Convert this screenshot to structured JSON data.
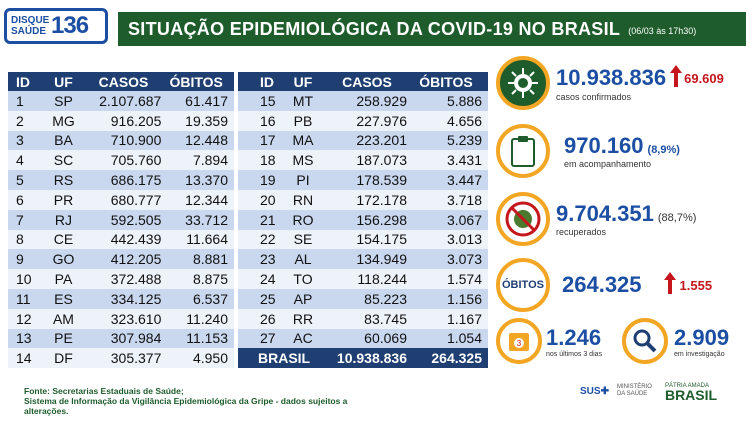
{
  "logo": {
    "line1": "DISQUE",
    "line2": "SAÚDE",
    "number": "136"
  },
  "header": {
    "title": "SITUAÇÃO EPIDEMIOLÓGICA DA COVID-19 NO BRASIL",
    "date": "(06/03 às 17h30)"
  },
  "table_headers": {
    "id": "ID",
    "uf": "UF",
    "casos": "CASOS",
    "obitos": "ÓBITOS"
  },
  "rows_left": [
    [
      "1",
      "SP",
      "2.107.687",
      "61.417"
    ],
    [
      "2",
      "MG",
      "916.205",
      "19.359"
    ],
    [
      "3",
      "BA",
      "710.900",
      "12.448"
    ],
    [
      "4",
      "SC",
      "705.760",
      "7.894"
    ],
    [
      "5",
      "RS",
      "686.175",
      "13.370"
    ],
    [
      "6",
      "PR",
      "680.777",
      "12.344"
    ],
    [
      "7",
      "RJ",
      "592.505",
      "33.712"
    ],
    [
      "8",
      "CE",
      "442.439",
      "11.664"
    ],
    [
      "9",
      "GO",
      "412.205",
      "8.881"
    ],
    [
      "10",
      "PA",
      "372.488",
      "8.875"
    ],
    [
      "11",
      "ES",
      "334.125",
      "6.537"
    ],
    [
      "12",
      "AM",
      "323.610",
      "11.240"
    ],
    [
      "13",
      "PE",
      "307.984",
      "11.153"
    ],
    [
      "14",
      "DF",
      "305.377",
      "4.950"
    ]
  ],
  "rows_right": [
    [
      "15",
      "MT",
      "258.929",
      "5.886"
    ],
    [
      "16",
      "PB",
      "227.976",
      "4.656"
    ],
    [
      "17",
      "MA",
      "223.201",
      "5.239"
    ],
    [
      "18",
      "MS",
      "187.073",
      "3.431"
    ],
    [
      "19",
      "PI",
      "178.539",
      "3.447"
    ],
    [
      "20",
      "RN",
      "172.178",
      "3.718"
    ],
    [
      "21",
      "RO",
      "156.298",
      "3.067"
    ],
    [
      "22",
      "SE",
      "154.175",
      "3.013"
    ],
    [
      "23",
      "AL",
      "134.949",
      "3.073"
    ],
    [
      "24",
      "TO",
      "118.244",
      "1.574"
    ],
    [
      "25",
      "AP",
      "85.223",
      "1.156"
    ],
    [
      "26",
      "RR",
      "83.745",
      "1.167"
    ],
    [
      "27",
      "AC",
      "60.069",
      "1.054"
    ]
  ],
  "total": {
    "label": "BRASIL",
    "casos": "10.938.836",
    "obitos": "264.325"
  },
  "stats": {
    "confirmed": {
      "value": "10.938.836",
      "label": "casos confirmados",
      "delta": "69.609"
    },
    "followup": {
      "value": "970.160",
      "pct": "(8,9%)",
      "label": "em acompanhamento"
    },
    "recovered": {
      "value": "9.704.351",
      "pct": "(88,7%)",
      "label": "recuperados"
    },
    "deaths": {
      "badge": "ÓBITOS",
      "value": "264.325",
      "delta": "1.555"
    },
    "last3": {
      "value": "1.246",
      "label": "nos últimos 3 dias",
      "icon_text": "3"
    },
    "investigation": {
      "value": "2.909",
      "label": "em investigação"
    }
  },
  "footer": {
    "line1": "Fonte: Secretarias Estaduais de Saúde;",
    "line2": "Sistema de Informação da Vigilância Epidemiológica da Gripe - dados sujeitos a alterações."
  },
  "gov": {
    "sus": "SUS",
    "ministry": "MINISTÉRIO DA SAÚDE",
    "patria": "PÁTRIA AMADA",
    "brasil": "BRASIL"
  },
  "colors": {
    "green": "#1e5c2c",
    "navy": "#1f3f73",
    "blue": "#1c4fa3",
    "orange": "#f2a623",
    "red": "#c4161c",
    "row_alt": "#c9d8ef"
  }
}
